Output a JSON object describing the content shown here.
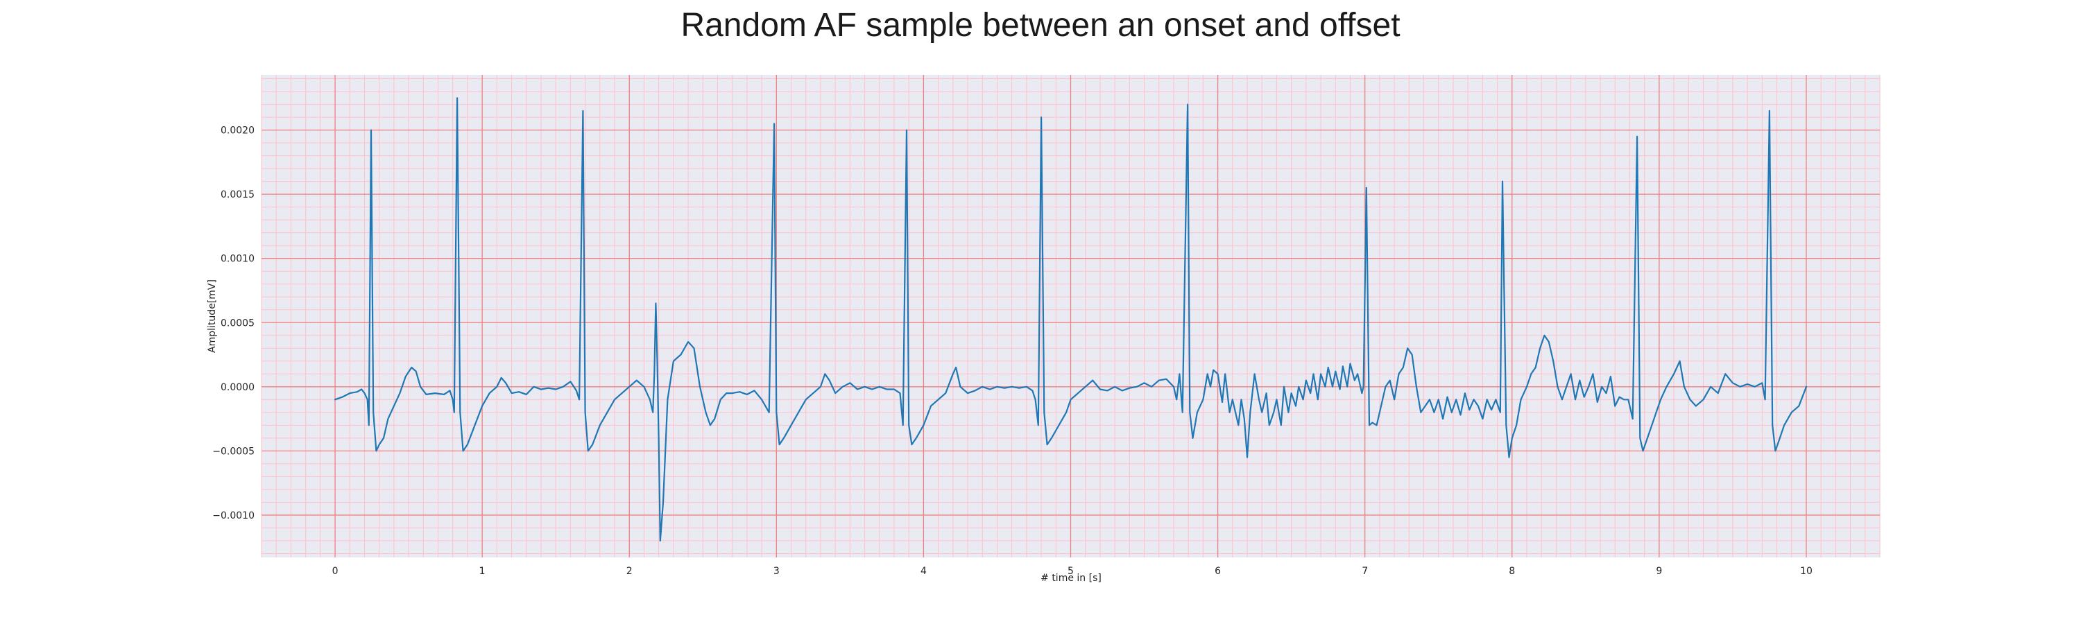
{
  "chart_data": {
    "type": "line",
    "title": "Random AF sample between an onset and offset",
    "xlabel": "# time in [s]",
    "ylabel": "Amplitude[mV]",
    "xlim": [
      -0.5,
      10.5
    ],
    "ylim": [
      -0.00133,
      0.00243
    ],
    "x_ticks": [
      0,
      1,
      2,
      3,
      4,
      5,
      6,
      7,
      8,
      9,
      10
    ],
    "y_ticks": [
      -0.001,
      -0.0005,
      0.0,
      0.0005,
      0.001,
      0.0015,
      0.002
    ],
    "y_tick_labels": [
      "−0.0010",
      "−0.0005",
      "0.0000",
      "0.0005",
      "0.0010",
      "0.0015",
      "0.0020"
    ],
    "grid": true,
    "minor_grid": true,
    "colors": {
      "line": "#1f77b4",
      "background": "#eaeaf2",
      "major_grid": "#f08080",
      "minor_grid": "#ffc0cb"
    },
    "series": [
      {
        "values": [
          [
            0.0,
            -0.0001
          ],
          [
            0.05,
            -8e-05
          ],
          [
            0.1,
            -5e-05
          ],
          [
            0.15,
            -4e-05
          ],
          [
            0.18,
            -2e-05
          ],
          [
            0.2,
            -5e-05
          ],
          [
            0.22,
            -0.0001
          ],
          [
            0.23,
            -0.0003
          ],
          [
            0.245,
            0.002
          ],
          [
            0.26,
            -0.0002
          ],
          [
            0.28,
            -0.0005
          ],
          [
            0.3,
            -0.00045
          ],
          [
            0.33,
            -0.0004
          ],
          [
            0.36,
            -0.00025
          ],
          [
            0.4,
            -0.00015
          ],
          [
            0.44,
            -5e-05
          ],
          [
            0.48,
            8e-05
          ],
          [
            0.52,
            0.00015
          ],
          [
            0.55,
            0.00012
          ],
          [
            0.58,
            0.0
          ],
          [
            0.62,
            -6e-05
          ],
          [
            0.68,
            -5e-05
          ],
          [
            0.74,
            -6e-05
          ],
          [
            0.78,
            -3e-05
          ],
          [
            0.8,
            -0.0001
          ],
          [
            0.81,
            -0.0002
          ],
          [
            0.83,
            0.00225
          ],
          [
            0.85,
            -0.0002
          ],
          [
            0.87,
            -0.0005
          ],
          [
            0.9,
            -0.00045
          ],
          [
            0.95,
            -0.0003
          ],
          [
            1.0,
            -0.00015
          ],
          [
            1.05,
            -5e-05
          ],
          [
            1.1,
            0.0
          ],
          [
            1.13,
            7e-05
          ],
          [
            1.16,
            3e-05
          ],
          [
            1.2,
            -5e-05
          ],
          [
            1.25,
            -4e-05
          ],
          [
            1.3,
            -6e-05
          ],
          [
            1.35,
            0.0
          ],
          [
            1.4,
            -2e-05
          ],
          [
            1.45,
            -1e-05
          ],
          [
            1.5,
            -2e-05
          ],
          [
            1.55,
            0.0
          ],
          [
            1.6,
            4e-05
          ],
          [
            1.64,
            -3e-05
          ],
          [
            1.66,
            -0.0001
          ],
          [
            1.685,
            0.00215
          ],
          [
            1.7,
            -0.0002
          ],
          [
            1.72,
            -0.0005
          ],
          [
            1.75,
            -0.00045
          ],
          [
            1.8,
            -0.0003
          ],
          [
            1.85,
            -0.0002
          ],
          [
            1.9,
            -0.0001
          ],
          [
            1.95,
            -5e-05
          ],
          [
            2.0,
            0.0
          ],
          [
            2.05,
            5e-05
          ],
          [
            2.1,
            0.0
          ],
          [
            2.14,
            -0.0001
          ],
          [
            2.16,
            -0.0002
          ],
          [
            2.17,
            0.0001
          ],
          [
            2.18,
            0.00065
          ],
          [
            2.19,
            0.0002
          ],
          [
            2.2,
            -0.0004
          ],
          [
            2.21,
            -0.0012
          ],
          [
            2.23,
            -0.0009
          ],
          [
            2.26,
            -0.0001
          ],
          [
            2.3,
            0.0002
          ],
          [
            2.35,
            0.00025
          ],
          [
            2.4,
            0.00035
          ],
          [
            2.44,
            0.0003
          ],
          [
            2.48,
            0.0
          ],
          [
            2.52,
            -0.0002
          ],
          [
            2.55,
            -0.0003
          ],
          [
            2.58,
            -0.00025
          ],
          [
            2.62,
            -0.0001
          ],
          [
            2.66,
            -5e-05
          ],
          [
            2.7,
            -5e-05
          ],
          [
            2.75,
            -4e-05
          ],
          [
            2.8,
            -6e-05
          ],
          [
            2.85,
            -3e-05
          ],
          [
            2.9,
            -0.0001
          ],
          [
            2.95,
            -0.0002
          ],
          [
            2.985,
            0.00205
          ],
          [
            3.0,
            -0.0002
          ],
          [
            3.02,
            -0.00045
          ],
          [
            3.05,
            -0.0004
          ],
          [
            3.1,
            -0.0003
          ],
          [
            3.15,
            -0.0002
          ],
          [
            3.2,
            -0.0001
          ],
          [
            3.25,
            -5e-05
          ],
          [
            3.3,
            0.0
          ],
          [
            3.33,
            0.0001
          ],
          [
            3.36,
            5e-05
          ],
          [
            3.4,
            -5e-05
          ],
          [
            3.45,
            0.0
          ],
          [
            3.5,
            3e-05
          ],
          [
            3.55,
            -2e-05
          ],
          [
            3.6,
            0.0
          ],
          [
            3.65,
            -2e-05
          ],
          [
            3.7,
            0.0
          ],
          [
            3.75,
            -2e-05
          ],
          [
            3.8,
            -2e-05
          ],
          [
            3.84,
            -5e-05
          ],
          [
            3.86,
            -0.0003
          ],
          [
            3.885,
            0.002
          ],
          [
            3.9,
            -0.0003
          ],
          [
            3.92,
            -0.00045
          ],
          [
            3.95,
            -0.0004
          ],
          [
            4.0,
            -0.0003
          ],
          [
            4.05,
            -0.00015
          ],
          [
            4.1,
            -0.0001
          ],
          [
            4.15,
            -5e-05
          ],
          [
            4.2,
            0.0001
          ],
          [
            4.22,
            0.00015
          ],
          [
            4.25,
            0.0
          ],
          [
            4.3,
            -5e-05
          ],
          [
            4.35,
            -3e-05
          ],
          [
            4.4,
            0.0
          ],
          [
            4.45,
            -2e-05
          ],
          [
            4.5,
            0.0
          ],
          [
            4.55,
            -1e-05
          ],
          [
            4.6,
            0.0
          ],
          [
            4.65,
            -1e-05
          ],
          [
            4.7,
            0.0
          ],
          [
            4.74,
            -3e-05
          ],
          [
            4.76,
            -0.0001
          ],
          [
            4.78,
            -0.0003
          ],
          [
            4.8,
            0.0021
          ],
          [
            4.82,
            -0.0002
          ],
          [
            4.84,
            -0.00045
          ],
          [
            4.87,
            -0.0004
          ],
          [
            4.92,
            -0.0003
          ],
          [
            4.97,
            -0.0002
          ],
          [
            5.0,
            -0.0001
          ],
          [
            5.05,
            -5e-05
          ],
          [
            5.1,
            0.0
          ],
          [
            5.15,
            5e-05
          ],
          [
            5.2,
            -2e-05
          ],
          [
            5.25,
            -3e-05
          ],
          [
            5.3,
            0.0
          ],
          [
            5.35,
            -3e-05
          ],
          [
            5.4,
            -1e-05
          ],
          [
            5.45,
            0.0
          ],
          [
            5.5,
            3e-05
          ],
          [
            5.55,
            0.0
          ],
          [
            5.6,
            5e-05
          ],
          [
            5.65,
            6e-05
          ],
          [
            5.7,
            0.0
          ],
          [
            5.72,
            -0.0001
          ],
          [
            5.74,
            0.0001
          ],
          [
            5.76,
            -0.0002
          ],
          [
            5.795,
            0.0022
          ],
          [
            5.81,
            -0.0002
          ],
          [
            5.83,
            -0.0004
          ],
          [
            5.86,
            -0.0002
          ],
          [
            5.9,
            -0.0001
          ],
          [
            5.93,
            0.0001
          ],
          [
            5.95,
            0.0
          ],
          [
            5.97,
            0.00013
          ],
          [
            6.0,
            0.0001
          ],
          [
            6.03,
            -0.00012
          ],
          [
            6.05,
            0.0001
          ],
          [
            6.08,
            -0.0002
          ],
          [
            6.1,
            -0.0001
          ],
          [
            6.14,
            -0.0003
          ],
          [
            6.16,
            -0.0001
          ],
          [
            6.18,
            -0.00025
          ],
          [
            6.2,
            -0.00055
          ],
          [
            6.22,
            -0.0002
          ],
          [
            6.25,
            0.0001
          ],
          [
            6.28,
            -0.0001
          ],
          [
            6.3,
            -0.0002
          ],
          [
            6.33,
            -5e-05
          ],
          [
            6.35,
            -0.0003
          ],
          [
            6.38,
            -0.0002
          ],
          [
            6.4,
            -0.0001
          ],
          [
            6.43,
            -0.0003
          ],
          [
            6.45,
            0.0
          ],
          [
            6.48,
            -0.0002
          ],
          [
            6.5,
            -5e-05
          ],
          [
            6.53,
            -0.00015
          ],
          [
            6.55,
            0.0
          ],
          [
            6.58,
            -0.0001
          ],
          [
            6.6,
            5e-05
          ],
          [
            6.63,
            -5e-05
          ],
          [
            6.65,
            0.0001
          ],
          [
            6.68,
            -0.0001
          ],
          [
            6.7,
            0.0001
          ],
          [
            6.73,
            0.0
          ],
          [
            6.75,
            0.00015
          ],
          [
            6.78,
            0.0
          ],
          [
            6.8,
            0.00012
          ],
          [
            6.83,
            -2e-05
          ],
          [
            6.85,
            0.00016
          ],
          [
            6.88,
            0.0
          ],
          [
            6.9,
            0.00018
          ],
          [
            6.93,
            5e-05
          ],
          [
            6.95,
            0.0001
          ],
          [
            6.98,
            -5e-05
          ],
          [
            6.99,
            0.0
          ],
          [
            7.01,
            0.00155
          ],
          [
            7.03,
            -0.0003
          ],
          [
            7.05,
            -0.00028
          ],
          [
            7.08,
            -0.0003
          ],
          [
            7.11,
            -0.00015
          ],
          [
            7.14,
            0.0
          ],
          [
            7.17,
            5e-05
          ],
          [
            7.2,
            -0.0001
          ],
          [
            7.23,
            0.0001
          ],
          [
            7.26,
            0.00015
          ],
          [
            7.29,
            0.0003
          ],
          [
            7.32,
            0.00025
          ],
          [
            7.35,
            0.0
          ],
          [
            7.38,
            -0.0002
          ],
          [
            7.41,
            -0.00015
          ],
          [
            7.44,
            -0.0001
          ],
          [
            7.47,
            -0.0002
          ],
          [
            7.5,
            -0.0001
          ],
          [
            7.53,
            -0.00025
          ],
          [
            7.56,
            -8e-05
          ],
          [
            7.59,
            -0.0002
          ],
          [
            7.62,
            -0.0001
          ],
          [
            7.65,
            -0.00022
          ],
          [
            7.68,
            -5e-05
          ],
          [
            7.71,
            -0.00018
          ],
          [
            7.74,
            -0.0001
          ],
          [
            7.77,
            -0.00015
          ],
          [
            7.8,
            -0.00025
          ],
          [
            7.83,
            -0.0001
          ],
          [
            7.86,
            -0.00018
          ],
          [
            7.89,
            -0.0001
          ],
          [
            7.92,
            -0.0002
          ],
          [
            7.935,
            0.0016
          ],
          [
            7.96,
            -0.0003
          ],
          [
            7.98,
            -0.00055
          ],
          [
            8.0,
            -0.0004
          ],
          [
            8.03,
            -0.0003
          ],
          [
            8.06,
            -0.0001
          ],
          [
            8.1,
            0.0
          ],
          [
            8.13,
            0.0001
          ],
          [
            8.16,
            0.00015
          ],
          [
            8.19,
            0.0003
          ],
          [
            8.22,
            0.0004
          ],
          [
            8.25,
            0.00035
          ],
          [
            8.28,
            0.0002
          ],
          [
            8.31,
            0.0
          ],
          [
            8.34,
            -0.0001
          ],
          [
            8.37,
            0.0
          ],
          [
            8.4,
            0.0001
          ],
          [
            8.43,
            -0.0001
          ],
          [
            8.46,
            5e-05
          ],
          [
            8.49,
            -8e-05
          ],
          [
            8.52,
            0.0
          ],
          [
            8.55,
            0.0001
          ],
          [
            8.58,
            -0.00012
          ],
          [
            8.61,
            0.0
          ],
          [
            8.64,
            -5e-05
          ],
          [
            8.67,
            8e-05
          ],
          [
            8.7,
            -0.00015
          ],
          [
            8.73,
            -8e-05
          ],
          [
            8.76,
            -0.0001
          ],
          [
            8.79,
            -0.0001
          ],
          [
            8.82,
            -0.00025
          ],
          [
            8.85,
            0.00195
          ],
          [
            8.87,
            -0.0004
          ],
          [
            8.89,
            -0.0005
          ],
          [
            8.92,
            -0.0004
          ],
          [
            8.95,
            -0.0003
          ],
          [
            8.98,
            -0.0002
          ],
          [
            9.01,
            -0.0001
          ],
          [
            9.05,
            0.0
          ],
          [
            9.1,
            0.0001
          ],
          [
            9.14,
            0.0002
          ],
          [
            9.17,
            0.0
          ],
          [
            9.21,
            -0.0001
          ],
          [
            9.25,
            -0.00015
          ],
          [
            9.3,
            -0.0001
          ],
          [
            9.35,
            0.0
          ],
          [
            9.4,
            -5e-05
          ],
          [
            9.45,
            0.0001
          ],
          [
            9.5,
            3e-05
          ],
          [
            9.55,
            0.0
          ],
          [
            9.6,
            2e-05
          ],
          [
            9.65,
            0.0
          ],
          [
            9.7,
            3e-05
          ],
          [
            9.72,
            -0.0001
          ],
          [
            9.75,
            0.00215
          ],
          [
            9.77,
            -0.0003
          ],
          [
            9.79,
            -0.0005
          ],
          [
            9.82,
            -0.0004
          ],
          [
            9.85,
            -0.0003
          ],
          [
            9.9,
            -0.0002
          ],
          [
            9.95,
            -0.00015
          ],
          [
            10.0,
            0.0
          ]
        ]
      }
    ]
  }
}
